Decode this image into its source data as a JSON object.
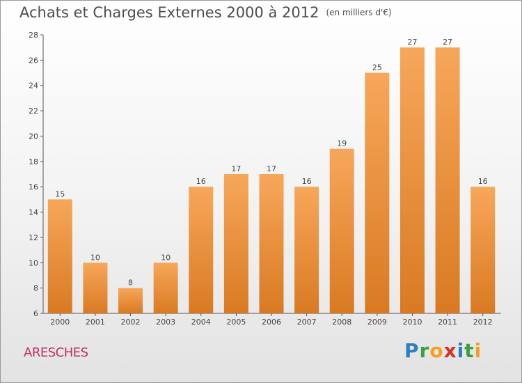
{
  "header": {
    "title": "Achats et Charges Externes 2000 à 2012",
    "unit": "(en milliers d'€)"
  },
  "commune": "ARESCHES",
  "logo": {
    "text": "Proxiti",
    "letters": [
      "P",
      "r",
      "o",
      "x",
      "i",
      "t",
      "i"
    ]
  },
  "colors": {
    "bar_top": "#f7a75a",
    "bar_bottom": "#d97a22",
    "commune": "#c0305b"
  },
  "chart_data": {
    "type": "bar",
    "title": "Achats et Charges Externes 2000 à 2012",
    "subtitle": "(en milliers d'€)",
    "xlabel": "",
    "ylabel": "",
    "categories": [
      "2000",
      "2001",
      "2002",
      "2003",
      "2004",
      "2005",
      "2006",
      "2007",
      "2008",
      "2009",
      "2010",
      "2011",
      "2012"
    ],
    "values": [
      15,
      10,
      8,
      10,
      16,
      17,
      17,
      16,
      19,
      25,
      27,
      27,
      16
    ],
    "ylim": [
      6,
      28
    ],
    "yticks": [
      6,
      8,
      10,
      12,
      14,
      16,
      18,
      20,
      22,
      24,
      26,
      28
    ],
    "grid": false,
    "legend": "none"
  }
}
